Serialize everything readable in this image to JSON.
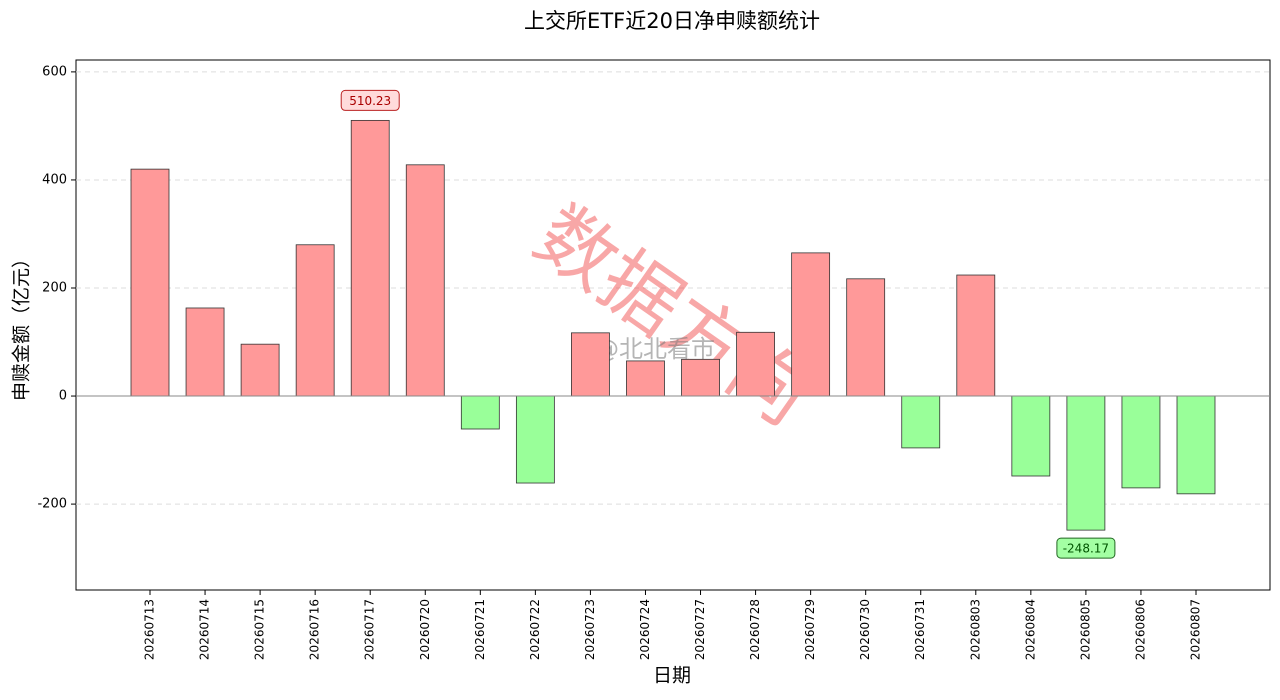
{
  "chart_data": {
    "type": "bar",
    "title": "上交所ETF近20日净申赎额统计",
    "x_label": "日期",
    "y_label": "申赎金额（亿元）",
    "categories": [
      "20260713",
      "20260714",
      "20260715",
      "20260716",
      "20260717",
      "20260720",
      "20260721",
      "20260722",
      "20260723",
      "20260724",
      "20260727",
      "20260728",
      "20260729",
      "20260730",
      "20260731",
      "20260803",
      "20260804",
      "20260805",
      "20260806",
      "20260807"
    ],
    "values": [
      420,
      163,
      96,
      280,
      510.23,
      428,
      -61,
      -161,
      117,
      65,
      68,
      118,
      265,
      217,
      -96,
      224,
      -148,
      -248.17,
      -170,
      -181
    ],
    "positive_color": "#ff9999",
    "negative_color": "#99ff99",
    "label_extremes": true,
    "ylim": [
      -359,
      622
    ],
    "yticks": [
      -200,
      0,
      200,
      400,
      600
    ],
    "grid": true,
    "watermarks": [
      "数据方向",
      "@北北看市"
    ]
  }
}
